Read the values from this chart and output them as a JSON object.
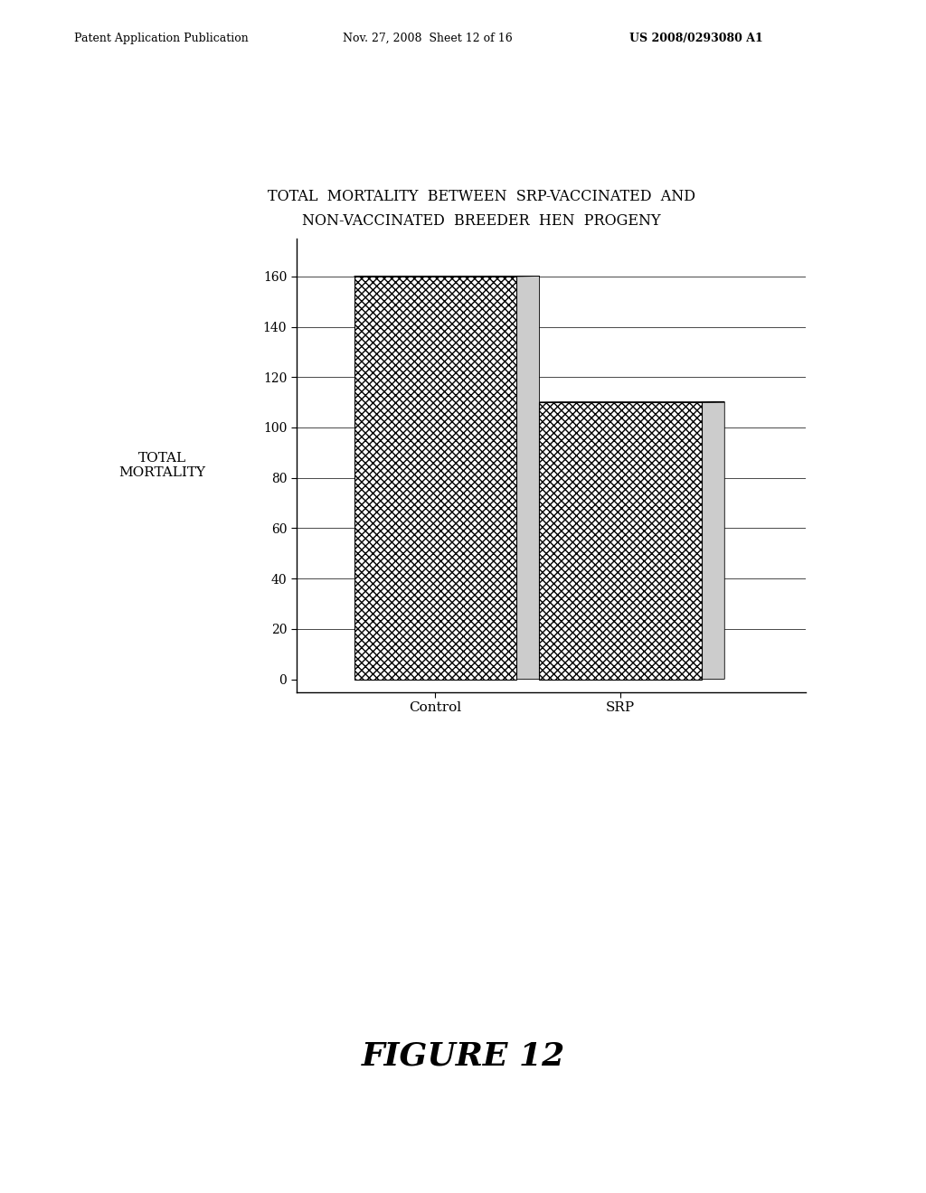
{
  "title_line1": "TOTAL  MORTALITY  BETWEEN  SRP-VACCINATED  AND",
  "title_line2": "NON-VACCINATED  BREEDER  HEN  PROGENY",
  "categories": [
    "Control",
    "SRP"
  ],
  "values": [
    160,
    110
  ],
  "ylabel": "TOTAL\nMORTALITY",
  "ylim": [
    0,
    180
  ],
  "yticks": [
    0,
    20,
    40,
    60,
    80,
    100,
    120,
    140,
    160
  ],
  "figure_label": "FIGURE 12",
  "patent_left": "Patent Application Publication",
  "patent_date": "Nov. 27, 2008  Sheet 12 of 16",
  "patent_number": "US 2008/0293080 A1",
  "background_color": "#ffffff",
  "bar_color": "#888888",
  "bar_edge_color": "#000000"
}
